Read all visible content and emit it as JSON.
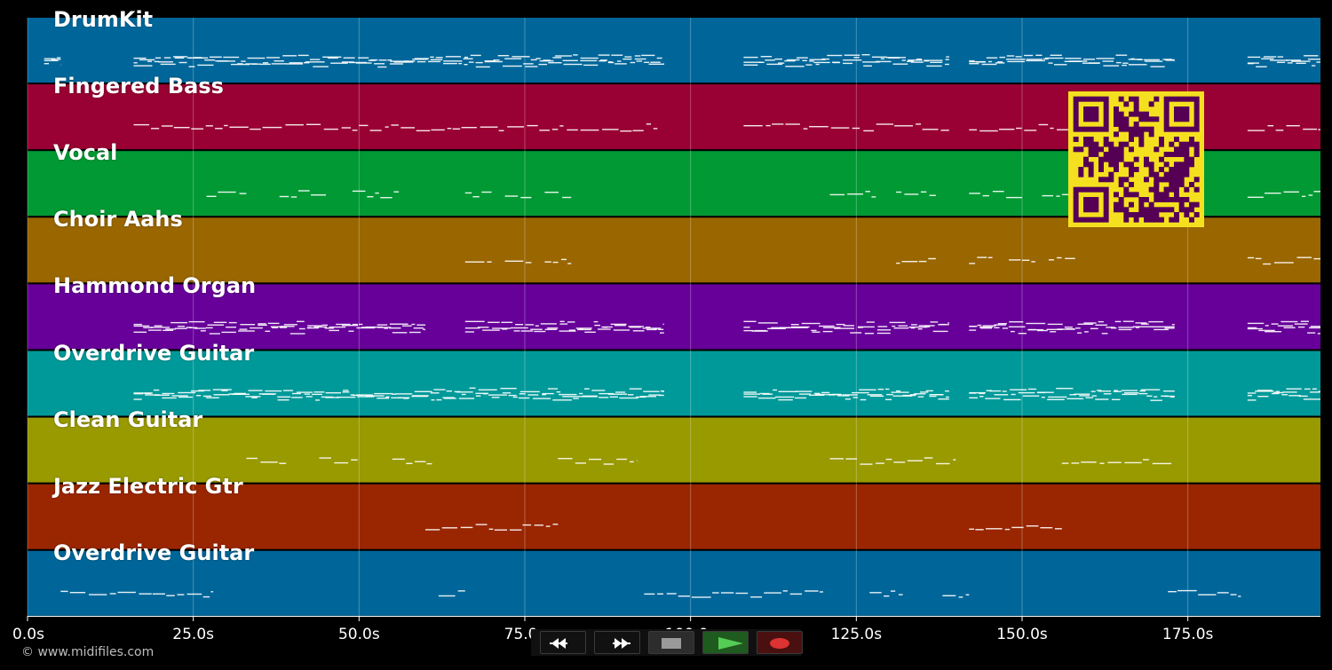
{
  "tracks": [
    {
      "name": "DrumKit",
      "color": "#006699"
    },
    {
      "name": "Fingered Bass",
      "color": "#990033"
    },
    {
      "name": "Vocal",
      "color": "#009933"
    },
    {
      "name": "Choir Aahs",
      "color": "#996600"
    },
    {
      "name": "Hammond Organ",
      "color": "#660099"
    },
    {
      "name": "Overdrive Guitar",
      "color": "#009999"
    },
    {
      "name": "Clean Guitar",
      "color": "#999900"
    },
    {
      "name": "Jazz Electric Gtr",
      "color": "#992600"
    },
    {
      "name": "Overdrive Guitar",
      "color": "#006699"
    }
  ],
  "timeline": {
    "start_s": 0,
    "end_s": 195,
    "tick_labels": [
      "0.0s",
      "25.0s",
      "50.0s",
      "75.0s",
      "100.0s",
      "125.0s",
      "150.0s",
      "175.0s"
    ],
    "tick_values": [
      0,
      25,
      50,
      75,
      100,
      125,
      150,
      175
    ]
  },
  "copyright": "© www.midifiles.com",
  "transport": {
    "rewind": "rewind-icon",
    "fast_forward": "fast-forward-icon",
    "stop": "stop-icon",
    "play": "play-icon",
    "record": "record-icon"
  },
  "qr_code": {
    "color_bg": "#f5e020",
    "color_fg": "#550055"
  }
}
